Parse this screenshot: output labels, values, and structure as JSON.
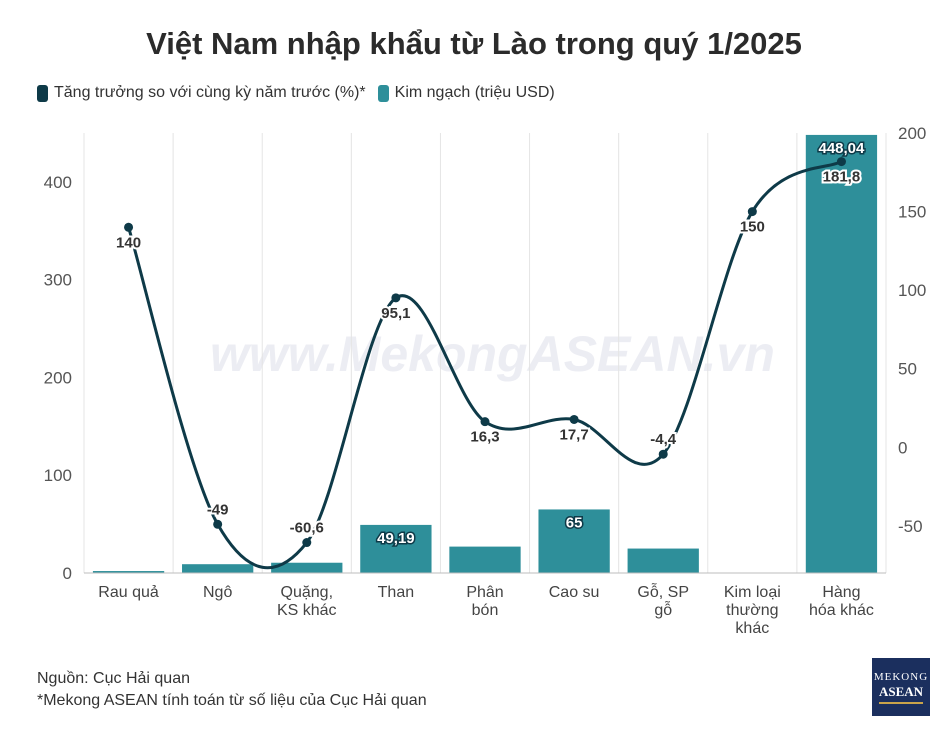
{
  "title": "Việt Nam nhập khẩu từ Lào trong quý 1/2025",
  "legend": {
    "growth_label": "Tăng trưởng so với cùng kỳ năm trước (%)*",
    "value_label": "Kim ngạch (triệu USD)"
  },
  "colors": {
    "bar": "#2e8f9a",
    "line": "#0e3a48",
    "grid": "#e4e4e4",
    "axis_text": "#555555"
  },
  "watermark": "www.MekongASEAN.vn",
  "footer": {
    "source": "Nguồn: Cục Hải quan",
    "note": "*Mekong ASEAN tính toán từ số liệu của Cục Hải quan"
  },
  "logo": {
    "line1": "MEKONG",
    "line2": "ASEAN"
  },
  "chart_data": {
    "type": "bar",
    "categories": [
      [
        "Rau quả"
      ],
      [
        "Ngô"
      ],
      [
        "Quặng,",
        "KS khác"
      ],
      [
        "Than"
      ],
      [
        "Phân",
        "bón"
      ],
      [
        "Cao su"
      ],
      [
        "Gỗ, SP",
        "gỗ"
      ],
      [
        "Kim loại",
        "thường",
        "khác"
      ],
      [
        "Hàng",
        "hóa khác"
      ]
    ],
    "series": [
      {
        "name": "Kim ngạch (triệu USD)",
        "type": "bar",
        "axis": "left",
        "values": [
          2,
          9,
          10.5,
          49.19,
          27,
          65,
          25,
          0.5,
          448.04
        ],
        "labels": [
          "",
          "",
          "",
          "49,19",
          "",
          "65",
          "",
          "",
          "448,04"
        ]
      },
      {
        "name": "Tăng trưởng so với cùng kỳ năm trước (%)*",
        "type": "line",
        "axis": "right",
        "values": [
          140,
          -49,
          -60.6,
          95.1,
          16.3,
          17.7,
          -4.4,
          150,
          181.8
        ],
        "labels": [
          "140",
          "-49",
          "-60,6",
          "95,1",
          "16,3",
          "17,7",
          "-4,4",
          "150",
          "181,8"
        ]
      }
    ],
    "y_left": {
      "min": 0,
      "max": 450,
      "ticks": [
        0,
        100,
        200,
        300,
        400
      ]
    },
    "y_right": {
      "min": -80,
      "max": 200,
      "ticks": [
        -50,
        0,
        50,
        100,
        150,
        200
      ]
    },
    "grid": "vertical"
  }
}
